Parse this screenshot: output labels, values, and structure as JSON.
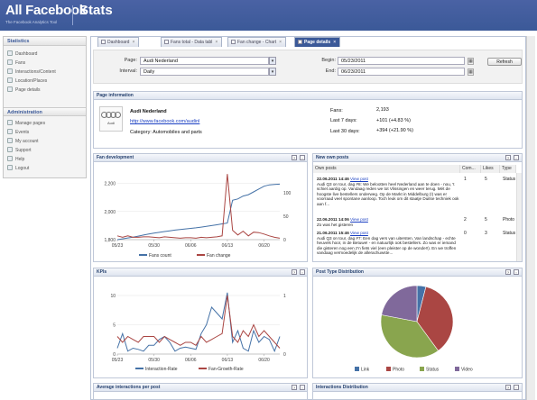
{
  "header": {
    "brand": "All Facebook",
    "tagline": "The Facebook Analytics Tool",
    "title": "Stats"
  },
  "sidebar": {
    "statistics_title": "Statistics",
    "statistics_items": [
      "Dashboard",
      "Fans",
      "Interactions/Content",
      "Location/Places",
      "Page details"
    ],
    "administration_title": "Administration",
    "administration_items": [
      "Manage pages",
      "Events",
      "My account",
      "Support",
      "Help",
      "Logout"
    ]
  },
  "tabs": [
    "Dashboard",
    "Fans total - Data tabl",
    "Fan change - Chart",
    "Page details"
  ],
  "filters": {
    "page_label": "Page:",
    "page_value": "Audi Nederland",
    "interval_label": "Interval:",
    "interval_value": "Daily",
    "begin_label": "Begin:",
    "begin_value": "05/23/2011",
    "end_label": "End:",
    "end_value": "06/23/2011",
    "refresh_label": "Refresh"
  },
  "page_info": {
    "title": "Page information",
    "logo_text": "Audi",
    "name": "Audi Nederland",
    "url": "http://www.facebook.com/audinl",
    "category": "Category: Automobiles and parts",
    "fans_label": "Fans:",
    "fans_value": "2,193",
    "last7_label": "Last 7 days:",
    "last7_value": "+101 (+4.83 %)",
    "last30_label": "Last 30 days:",
    "last30_value": "+394 (+21.90 %)"
  },
  "panels": {
    "fan_development": "Fan development",
    "new_own_posts": "New own posts",
    "kpis": "KPIs",
    "post_type_distribution": "Post Type Distribution",
    "avg_interactions": "Average interactions per post",
    "interactions_distribution": "Interactions Distribution"
  },
  "posts": {
    "columns": [
      "Own posts",
      "Com...",
      "Likes",
      "Type"
    ],
    "rows": [
      {
        "date": "22.06.2011 14:46",
        "link": "View post",
        "text": "Audi Q3 on tour, dag #8: We belootten heel Nederland aan te doen - nou, 't schiet aardig op. Vandaag reden we tot Vlissingen en weer terug. Mét de hoogste live bestellers onderweg. Op de Markt in Middelburg (!) was er voorraad veel spontane aanloop. Toch leuk om dit staatje Duitse techniek ook aan f...",
        "comments": "1",
        "likes": "5",
        "type": "Status"
      },
      {
        "date": "22.06.2011 14:06",
        "link": "View post",
        "text": "Zo was het gisteren",
        "comments": "2",
        "likes": "5",
        "type": "Photo"
      },
      {
        "date": "21.06.2011 15:46",
        "link": "View post",
        "text": "Audi Q3 on tour, dag #7: Een dag vers van uitersten. Van landschap - echte heuvels hoor, in de Betuwe! - en natuurlijk ook bestellers. Zo was er iemand die gisteren nog een z'n fiets viel (een pleister op de wonde!!). En we troffen vandaag vermoedelijk de allerachuwste...",
        "comments": "0",
        "likes": "3",
        "type": "Status"
      }
    ]
  },
  "fan_chart": {
    "x_ticks": [
      "05/23",
      "05/30",
      "06/06",
      "06/13",
      "06/20"
    ],
    "y_left_ticks": [
      "1,800",
      "2,000",
      "2,200"
    ],
    "y_right_ticks": [
      "0",
      "50",
      "100"
    ],
    "legend": [
      "Fans count",
      "Fan change"
    ]
  },
  "kpi_chart": {
    "x_ticks": [
      "05/23",
      "05/30",
      "06/06",
      "06/13",
      "06/20"
    ],
    "y_left_ticks": [
      "0",
      "5",
      "10"
    ],
    "y_right_ticks": [
      "0",
      "1"
    ],
    "legend": [
      "Interaction-Rate",
      "Fan-Growth-Rate"
    ]
  },
  "chart_data": [
    {
      "type": "line",
      "x": [
        "05/23",
        "05/24",
        "05/25",
        "05/26",
        "05/27",
        "05/28",
        "05/29",
        "05/30",
        "05/31",
        "06/01",
        "06/02",
        "06/03",
        "06/04",
        "06/05",
        "06/06",
        "06/07",
        "06/08",
        "06/09",
        "06/10",
        "06/11",
        "06/12",
        "06/13",
        "06/14",
        "06/15",
        "06/16",
        "06/17",
        "06/18",
        "06/19",
        "06/20",
        "06/21",
        "06/22",
        "06/23"
      ],
      "series": [
        {
          "name": "Fans count",
          "axis": "left",
          "values": [
            1800,
            1806,
            1812,
            1818,
            1825,
            1833,
            1840,
            1846,
            1852,
            1858,
            1863,
            1868,
            1872,
            1876,
            1880,
            1884,
            1889,
            1894,
            1900,
            1906,
            1912,
            1918,
            2080,
            2090,
            2110,
            2120,
            2140,
            2160,
            2180,
            2190,
            2193,
            2195
          ]
        },
        {
          "name": "Fan change",
          "axis": "right",
          "values": [
            8,
            5,
            8,
            5,
            5,
            6,
            6,
            5,
            4,
            6,
            5,
            4,
            3,
            4,
            4,
            3,
            5,
            4,
            5,
            6,
            8,
            140,
            20,
            10,
            18,
            8,
            16,
            15,
            12,
            8,
            5,
            3
          ]
        }
      ],
      "ylim_left": [
        1800,
        2300
      ],
      "ylim_right": [
        0,
        150
      ]
    },
    {
      "type": "line",
      "x": [
        "05/23",
        "05/24",
        "05/25",
        "05/26",
        "05/27",
        "05/28",
        "05/29",
        "05/30",
        "05/31",
        "06/01",
        "06/02",
        "06/03",
        "06/04",
        "06/05",
        "06/06",
        "06/07",
        "06/08",
        "06/09",
        "06/10",
        "06/11",
        "06/12",
        "06/13",
        "06/14",
        "06/15",
        "06/16",
        "06/17",
        "06/18",
        "06/19",
        "06/20",
        "06/21",
        "06/22",
        "06/23"
      ],
      "series": [
        {
          "name": "Interaction-Rate",
          "axis": "left",
          "values": [
            1.0,
            3.5,
            0.5,
            1.0,
            0.8,
            0.5,
            1.5,
            1.5,
            2.5,
            3.0,
            2.0,
            0.5,
            1.0,
            1.2,
            1.0,
            0.8,
            3.5,
            5.0,
            8.0,
            7.0,
            6.0,
            10.5,
            2.0,
            4.0,
            1.0,
            0.5,
            4.0,
            2.0,
            3.0,
            2.5,
            0.5,
            3.0
          ]
        },
        {
          "name": "Fan-Growth-Rate",
          "axis": "right",
          "values": [
            0.3,
            0.2,
            0.3,
            0.25,
            0.2,
            0.3,
            0.3,
            0.3,
            0.2,
            0.3,
            0.25,
            0.2,
            0.15,
            0.2,
            0.2,
            0.15,
            0.3,
            0.2,
            0.25,
            0.3,
            0.35,
            1.0,
            0.3,
            0.2,
            0.4,
            0.3,
            0.5,
            0.3,
            0.4,
            0.3,
            0.2,
            0.1
          ]
        }
      ],
      "ylim_left": [
        0,
        12
      ],
      "ylim_right": [
        0,
        1.2
      ]
    },
    {
      "type": "pie",
      "labels": [
        "Link",
        "Photo",
        "Status",
        "Video"
      ],
      "values": [
        4,
        36,
        38,
        22
      ],
      "colors": [
        "#4572a7",
        "#aa4643",
        "#89a54e",
        "#80699b"
      ]
    }
  ]
}
